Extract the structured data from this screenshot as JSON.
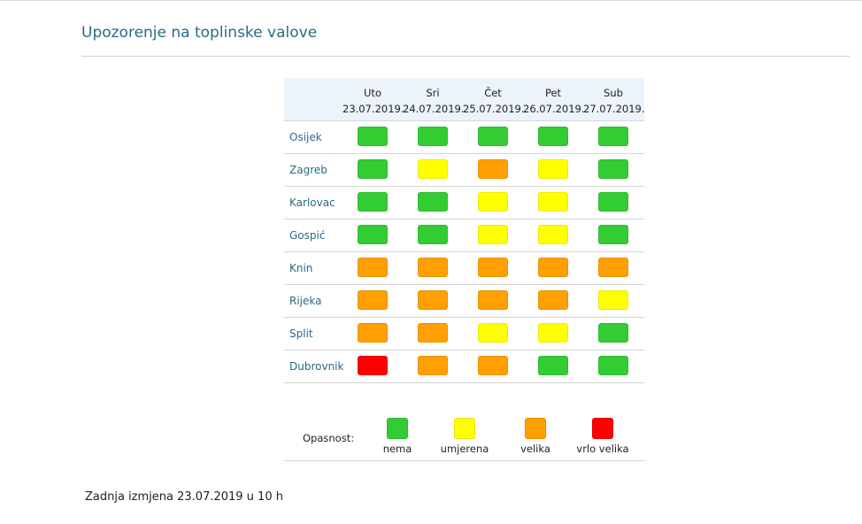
{
  "page": {
    "title": "Upozorenje na toplinske valove",
    "footer": "Zadnja izmjena 23.07.2019 u 10 h"
  },
  "colors": {
    "nema": "#33cc33",
    "umjerena": "#ffff00",
    "velika": "#ff9f00",
    "vrlo_velika": "#ff0000"
  },
  "days": [
    {
      "name": "Uto",
      "date": "23.07.2019."
    },
    {
      "name": "Sri",
      "date": "24.07.2019."
    },
    {
      "name": "Čet",
      "date": "25.07.2019."
    },
    {
      "name": "Pet",
      "date": "26.07.2019."
    },
    {
      "name": "Sub",
      "date": "27.07.2019."
    }
  ],
  "rows": [
    {
      "city": "Osijek",
      "levels": [
        "nema",
        "nema",
        "nema",
        "nema",
        "nema"
      ]
    },
    {
      "city": "Zagreb",
      "levels": [
        "nema",
        "umjerena",
        "velika",
        "umjerena",
        "nema"
      ]
    },
    {
      "city": "Karlovac",
      "levels": [
        "nema",
        "nema",
        "umjerena",
        "umjerena",
        "nema"
      ]
    },
    {
      "city": "Gospić",
      "levels": [
        "nema",
        "nema",
        "umjerena",
        "umjerena",
        "nema"
      ]
    },
    {
      "city": "Knin",
      "levels": [
        "velika",
        "velika",
        "velika",
        "velika",
        "velika"
      ]
    },
    {
      "city": "Rijeka",
      "levels": [
        "velika",
        "velika",
        "velika",
        "velika",
        "umjerena"
      ]
    },
    {
      "city": "Split",
      "levels": [
        "velika",
        "velika",
        "umjerena",
        "umjerena",
        "nema"
      ]
    },
    {
      "city": "Dubrovnik",
      "levels": [
        "vrlo_velika",
        "velika",
        "velika",
        "nema",
        "nema"
      ]
    }
  ],
  "legend": {
    "label": "Opasnost:",
    "items": [
      {
        "key": "nema",
        "label": "nema"
      },
      {
        "key": "umjerena",
        "label": "umjerena"
      },
      {
        "key": "velika",
        "label": "velika"
      },
      {
        "key": "vrlo_velika",
        "label": "vrlo velika"
      }
    ]
  }
}
